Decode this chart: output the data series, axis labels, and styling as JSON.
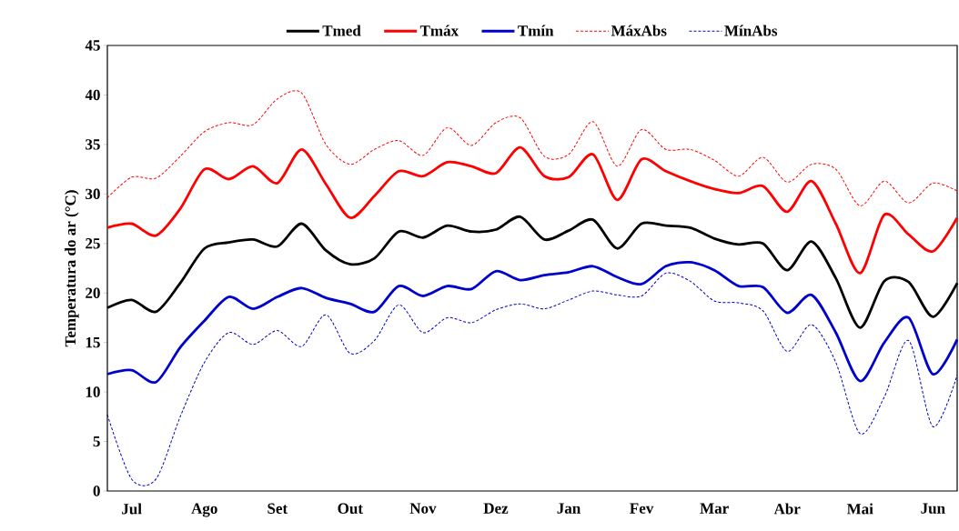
{
  "chart_data": {
    "type": "line",
    "ylabel": "Temperatura do ar (°C)",
    "categories": [
      null,
      "Jul",
      null,
      null,
      "Ago",
      null,
      null,
      "Set",
      null,
      null,
      "Out",
      null,
      null,
      "Nov",
      null,
      null,
      "Dez",
      null,
      null,
      "Jan",
      null,
      null,
      "Fev",
      null,
      null,
      "Mar",
      null,
      null,
      "Abr",
      null,
      null,
      "Mai",
      null,
      null,
      "Jun",
      null
    ],
    "ylim": [
      0,
      45
    ],
    "yticks": [
      0,
      5,
      10,
      15,
      20,
      25,
      30,
      35,
      40,
      45
    ],
    "legend": "top",
    "series": [
      {
        "name": "Tmed",
        "color": "#000000",
        "line_style": "solid",
        "values": [
          18.5,
          19.3,
          18.1,
          21,
          24.5,
          25.1,
          25.4,
          24.7,
          27,
          24.3,
          22.9,
          23.5,
          26.2,
          25.6,
          26.8,
          26.2,
          26.4,
          27.7,
          25.4,
          26.3,
          27.4,
          24.5,
          27,
          26.8,
          26.6,
          25.5,
          24.9,
          25,
          22.3,
          25.2,
          21.5,
          16.5,
          21.2,
          21.1,
          17.6,
          21
        ]
      },
      {
        "name": "Tmáx",
        "color": "#ff0000",
        "line_style": "solid",
        "values": [
          26.6,
          27,
          25.8,
          28.5,
          32.5,
          31.5,
          32.8,
          31.1,
          34.5,
          31,
          27.6,
          29.8,
          32.3,
          31.8,
          33.2,
          32.8,
          32.1,
          34.7,
          31.8,
          31.7,
          34,
          29.4,
          33.5,
          32.3,
          31.3,
          30.5,
          30.1,
          30.8,
          28.2,
          31.3,
          27,
          22,
          27.9,
          25.9,
          24.2,
          27.6
        ]
      },
      {
        "name": "Tmín",
        "color": "#0000cc",
        "line_style": "solid",
        "values": [
          11.8,
          12.2,
          11,
          14.5,
          17.2,
          19.6,
          18.4,
          19.6,
          20.5,
          19.5,
          18.9,
          18.1,
          20.7,
          19.7,
          20.7,
          20.4,
          22.2,
          21.3,
          21.8,
          22.1,
          22.7,
          21.6,
          20.9,
          22.7,
          23.1,
          22.3,
          20.7,
          20.6,
          18,
          19.8,
          16,
          11.1,
          15,
          17.5,
          11.8,
          15.3
        ]
      },
      {
        "name": "MáxAbs",
        "color": "#ff0000",
        "line_style": "dashed",
        "values": [
          29.6,
          31.7,
          31.6,
          33.8,
          36.3,
          37.2,
          37,
          39.6,
          40.2,
          35,
          33,
          34.5,
          35.4,
          33.9,
          36.7,
          34.9,
          37.2,
          37.7,
          33.8,
          34,
          37.3,
          32.8,
          36.5,
          34.5,
          34.5,
          33.4,
          31.8,
          33.7,
          31.2,
          33,
          32.5,
          28.8,
          31.3,
          29.1,
          31.1,
          30.3
        ]
      },
      {
        "name": "MínAbs",
        "color": "#0000cc",
        "line_style": "dashed",
        "values": [
          7.7,
          1.2,
          1.2,
          7.5,
          13,
          16,
          14.8,
          16.2,
          14.6,
          17.8,
          13.9,
          15.2,
          18.8,
          16,
          17.5,
          17,
          18.3,
          18.9,
          18.4,
          19.3,
          20.2,
          19.8,
          19.7,
          22,
          21.2,
          19.2,
          19,
          18.2,
          14.1,
          16.8,
          13,
          5.8,
          9.5,
          15.2,
          6.5,
          11.7
        ]
      }
    ]
  }
}
